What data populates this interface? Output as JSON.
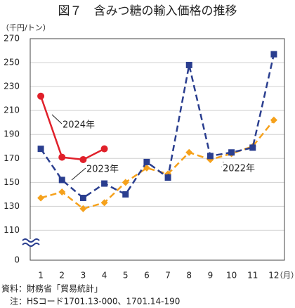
{
  "chart_data": {
    "type": "line",
    "title": "図７　含みつ糖の輸入価格の推移",
    "y_unit": "（千円/トン）",
    "x_unit": "（月）",
    "categories": [
      "1",
      "2",
      "3",
      "4",
      "5",
      "6",
      "7",
      "8",
      "9",
      "10",
      "11",
      "12"
    ],
    "series": [
      {
        "name": "2022年",
        "color": "#f5a11c",
        "dash": true,
        "marker": "diamond",
        "values": [
          137,
          142,
          128,
          133,
          150,
          162,
          157,
          175,
          169,
          174,
          180,
          202
        ]
      },
      {
        "name": "2023年",
        "color": "#2a3e8f",
        "dash": true,
        "marker": "square",
        "values": [
          178,
          152,
          137,
          149,
          140,
          167,
          154,
          248,
          172,
          175,
          179,
          257
        ]
      },
      {
        "name": "2024年",
        "color": "#e0202a",
        "dash": false,
        "marker": "circle",
        "values": [
          222,
          171,
          169,
          178,
          null,
          null,
          null,
          null,
          null,
          null,
          null,
          null
        ]
      }
    ],
    "ylim": [
      85,
      270
    ],
    "yticks": [
      0,
      110,
      130,
      150,
      170,
      190,
      210,
      230,
      250,
      270
    ],
    "axis_break": true,
    "grid": true,
    "notes": [
      "資料：財務省「貿易統計」",
      "　注：HSコード1701.13-000、1701.14-190"
    ]
  }
}
